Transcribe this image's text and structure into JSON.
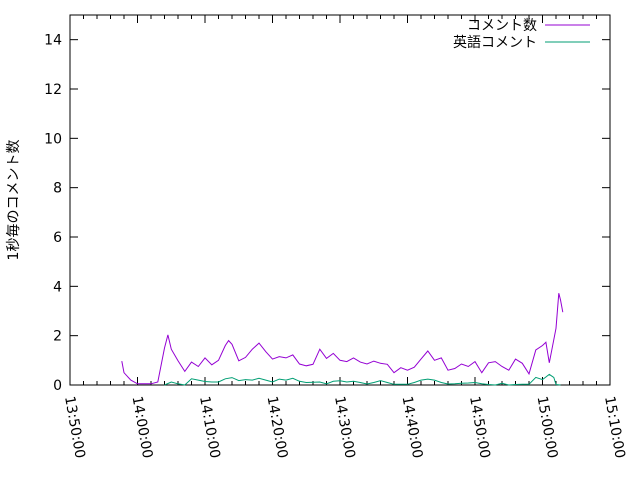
{
  "chart_data": {
    "type": "line",
    "title": "",
    "xlabel": "",
    "ylabel": "1秒毎のコメント数",
    "xlim": [
      "13:50:00",
      "15:10:00"
    ],
    "ylim": [
      0,
      15
    ],
    "x_ticks": [
      "13:50:00",
      "14:00:00",
      "14:10:00",
      "14:20:00",
      "14:30:00",
      "14:40:00",
      "14:50:00",
      "15:00:00",
      "15:10:00"
    ],
    "y_ticks": [
      0,
      2,
      4,
      6,
      8,
      10,
      12,
      14
    ],
    "grid": false,
    "legend_position": "top-right",
    "series": [
      {
        "name": "コメント数",
        "color": "#9400d3",
        "points": [
          [
            "13:57:40",
            0.97
          ],
          [
            "13:58:00",
            0.5
          ],
          [
            "13:59:00",
            0.2
          ],
          [
            "14:00:00",
            0.05
          ],
          [
            "14:01:00",
            0.05
          ],
          [
            "14:02:00",
            0.05
          ],
          [
            "14:03:00",
            0.12
          ],
          [
            "14:04:00",
            1.5
          ],
          [
            "14:04:30",
            2.03
          ],
          [
            "14:05:00",
            1.45
          ],
          [
            "14:06:00",
            0.98
          ],
          [
            "14:07:00",
            0.55
          ],
          [
            "14:08:00",
            0.93
          ],
          [
            "14:09:00",
            0.75
          ],
          [
            "14:10:00",
            1.1
          ],
          [
            "14:11:00",
            0.82
          ],
          [
            "14:12:00",
            1.0
          ],
          [
            "14:13:00",
            1.6
          ],
          [
            "14:13:30",
            1.8
          ],
          [
            "14:14:00",
            1.65
          ],
          [
            "14:15:00",
            0.98
          ],
          [
            "14:16:00",
            1.12
          ],
          [
            "14:17:00",
            1.45
          ],
          [
            "14:18:00",
            1.7
          ],
          [
            "14:19:00",
            1.35
          ],
          [
            "14:20:00",
            1.05
          ],
          [
            "14:21:00",
            1.15
          ],
          [
            "14:22:00",
            1.1
          ],
          [
            "14:23:00",
            1.22
          ],
          [
            "14:24:00",
            0.85
          ],
          [
            "14:25:00",
            0.78
          ],
          [
            "14:26:00",
            0.84
          ],
          [
            "14:27:00",
            1.45
          ],
          [
            "14:28:00",
            1.08
          ],
          [
            "14:29:00",
            1.28
          ],
          [
            "14:30:00",
            1.0
          ],
          [
            "14:31:00",
            0.95
          ],
          [
            "14:32:00",
            1.1
          ],
          [
            "14:33:00",
            0.93
          ],
          [
            "14:34:00",
            0.85
          ],
          [
            "14:35:00",
            0.97
          ],
          [
            "14:36:00",
            0.88
          ],
          [
            "14:37:00",
            0.84
          ],
          [
            "14:38:00",
            0.5
          ],
          [
            "14:39:00",
            0.7
          ],
          [
            "14:40:00",
            0.6
          ],
          [
            "14:41:00",
            0.72
          ],
          [
            "14:42:00",
            1.05
          ],
          [
            "14:43:00",
            1.38
          ],
          [
            "14:44:00",
            1.0
          ],
          [
            "14:45:00",
            1.1
          ],
          [
            "14:46:00",
            0.6
          ],
          [
            "14:47:00",
            0.67
          ],
          [
            "14:48:00",
            0.85
          ],
          [
            "14:49:00",
            0.75
          ],
          [
            "14:50:00",
            0.95
          ],
          [
            "14:51:00",
            0.5
          ],
          [
            "14:52:00",
            0.9
          ],
          [
            "14:53:00",
            0.95
          ],
          [
            "14:54:00",
            0.75
          ],
          [
            "14:55:00",
            0.6
          ],
          [
            "14:56:00",
            1.05
          ],
          [
            "14:57:00",
            0.88
          ],
          [
            "14:58:00",
            0.45
          ],
          [
            "14:59:00",
            1.42
          ],
          [
            "15:00:00",
            1.6
          ],
          [
            "15:00:30",
            1.73
          ],
          [
            "15:01:00",
            0.9
          ],
          [
            "15:02:00",
            2.3
          ],
          [
            "15:02:25",
            3.72
          ],
          [
            "15:02:40",
            3.45
          ],
          [
            "15:03:00",
            2.95
          ]
        ]
      },
      {
        "name": "英語コメント",
        "color": "#009e73",
        "points": [
          [
            "14:04:00",
            0.0
          ],
          [
            "14:05:00",
            0.12
          ],
          [
            "14:06:00",
            0.05
          ],
          [
            "14:07:00",
            0.0
          ],
          [
            "14:08:00",
            0.25
          ],
          [
            "14:09:00",
            0.2
          ],
          [
            "14:10:00",
            0.14
          ],
          [
            "14:11:00",
            0.12
          ],
          [
            "14:12:00",
            0.12
          ],
          [
            "14:13:00",
            0.25
          ],
          [
            "14:14:00",
            0.3
          ],
          [
            "14:15:00",
            0.18
          ],
          [
            "14:16:00",
            0.22
          ],
          [
            "14:17:00",
            0.2
          ],
          [
            "14:18:00",
            0.27
          ],
          [
            "14:19:00",
            0.2
          ],
          [
            "14:20:00",
            0.12
          ],
          [
            "14:21:00",
            0.24
          ],
          [
            "14:22:00",
            0.2
          ],
          [
            "14:23:00",
            0.27
          ],
          [
            "14:24:00",
            0.15
          ],
          [
            "14:25:00",
            0.1
          ],
          [
            "14:26:00",
            0.11
          ],
          [
            "14:27:00",
            0.12
          ],
          [
            "14:28:00",
            0.05
          ],
          [
            "14:29:00",
            0.15
          ],
          [
            "14:30:00",
            0.17
          ],
          [
            "14:31:00",
            0.12
          ],
          [
            "14:32:00",
            0.15
          ],
          [
            "14:33:00",
            0.1
          ],
          [
            "14:34:00",
            0.04
          ],
          [
            "14:35:00",
            0.1
          ],
          [
            "14:36:00",
            0.18
          ],
          [
            "14:37:00",
            0.1
          ],
          [
            "14:38:00",
            0.03
          ],
          [
            "14:39:00",
            0.03
          ],
          [
            "14:40:00",
            0.03
          ],
          [
            "14:41:00",
            0.1
          ],
          [
            "14:42:00",
            0.2
          ],
          [
            "14:43:00",
            0.24
          ],
          [
            "14:44:00",
            0.2
          ],
          [
            "14:45:00",
            0.1
          ],
          [
            "14:46:00",
            0.04
          ],
          [
            "14:47:00",
            0.05
          ],
          [
            "14:48:00",
            0.07
          ],
          [
            "14:49:00",
            0.08
          ],
          [
            "14:50:00",
            0.1
          ],
          [
            "14:51:00",
            0.05
          ],
          [
            "14:52:00",
            0.02
          ],
          [
            "14:53:00",
            0.0
          ],
          [
            "14:54:00",
            0.07
          ],
          [
            "14:55:00",
            0.0
          ],
          [
            "14:56:00",
            0.02
          ],
          [
            "14:57:00",
            0.03
          ],
          [
            "14:58:00",
            0.03
          ],
          [
            "14:59:00",
            0.31
          ],
          [
            "15:00:00",
            0.22
          ],
          [
            "15:01:00",
            0.43
          ],
          [
            "15:01:40",
            0.31
          ],
          [
            "15:02:00",
            0.02
          ],
          [
            "15:02:40",
            0.0
          ]
        ]
      }
    ]
  }
}
